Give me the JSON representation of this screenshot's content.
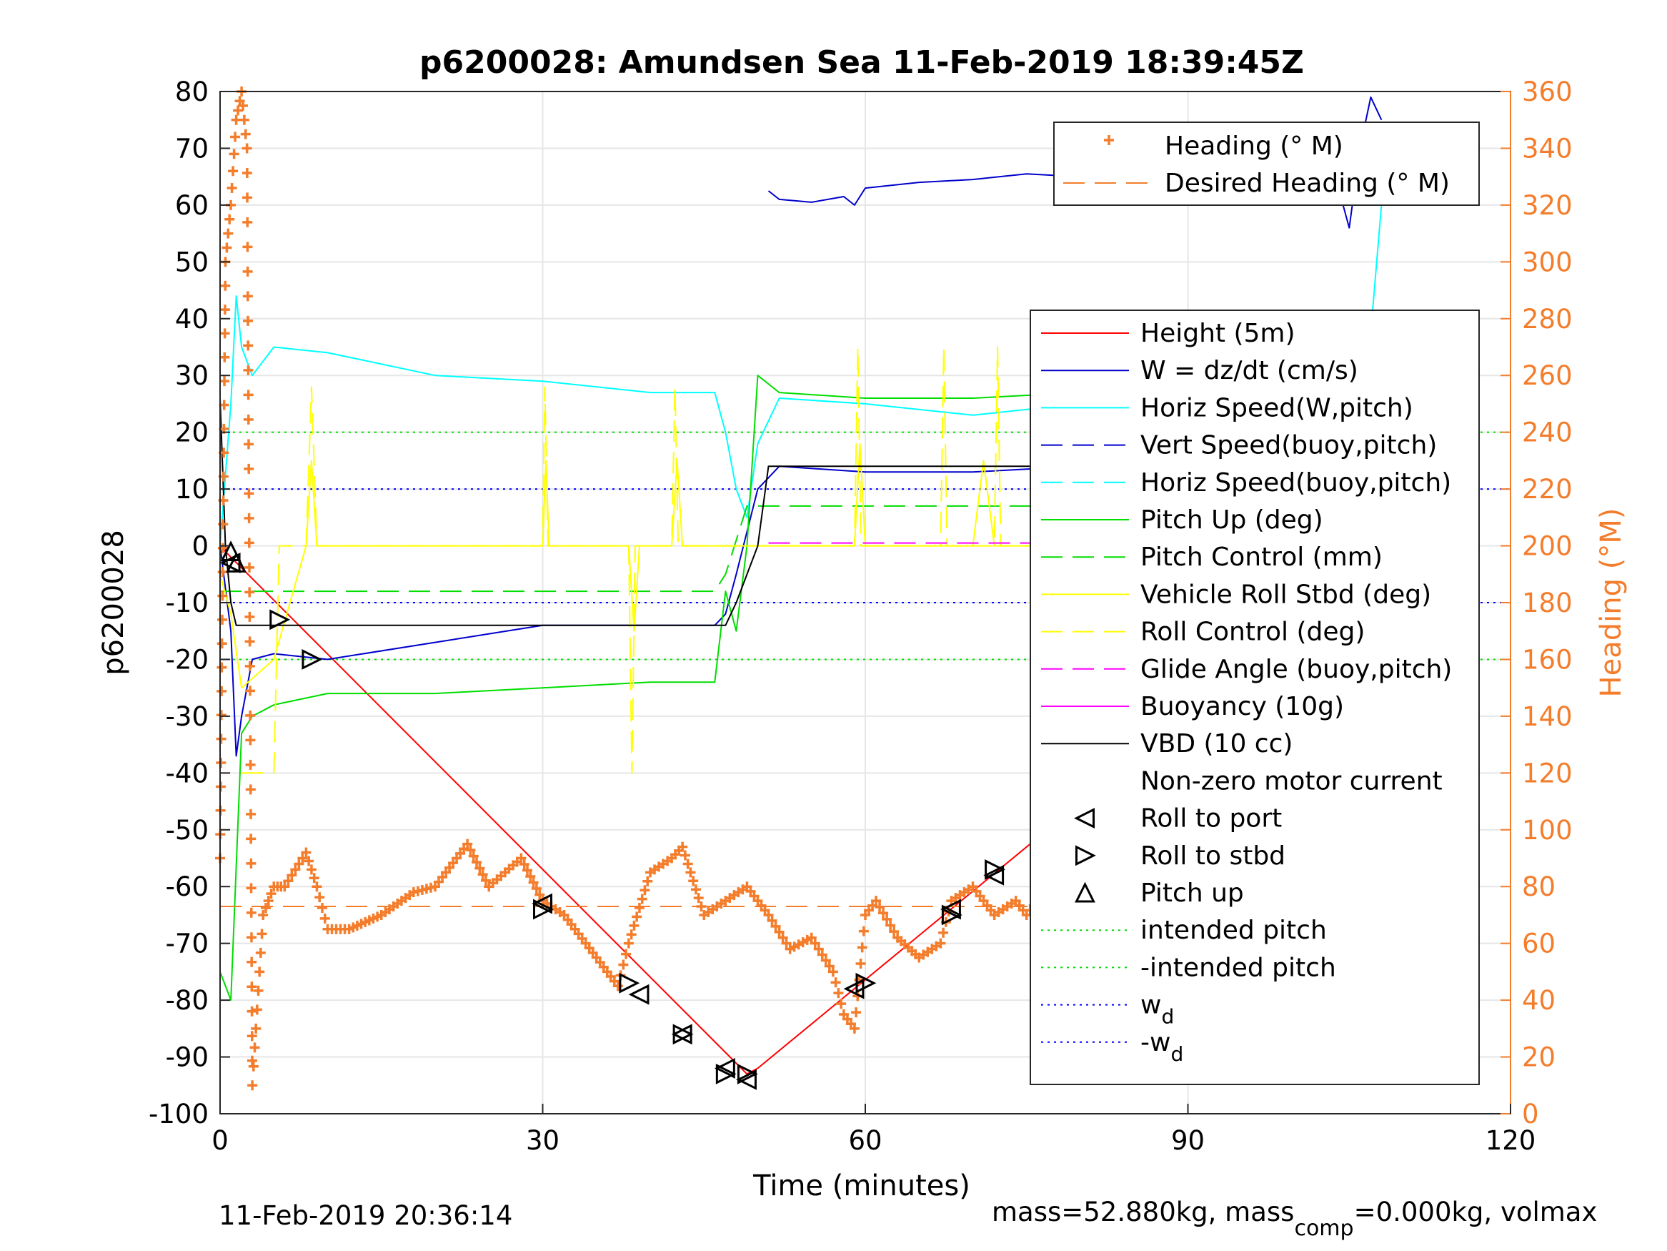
{
  "chart_data": {
    "type": "line",
    "title": "p6200028: Amundsen Sea 11-Feb-2019 18:39:45Z",
    "xlabel": "Time (minutes)",
    "ylabel": "p6200028",
    "y2label": "Heading (°M)",
    "xlim": [
      0,
      120
    ],
    "ylim": [
      -100,
      80
    ],
    "y2lim": [
      0,
      360
    ],
    "xticks": [
      "0",
      "30",
      "60",
      "90",
      "120"
    ],
    "yticks": [
      "80",
      "70",
      "60",
      "50",
      "40",
      "30",
      "20",
      "10",
      "0",
      "-10",
      "-20",
      "-30",
      "-40",
      "-50",
      "-60",
      "-70",
      "-80",
      "-90",
      "-100"
    ],
    "y2ticks": [
      "360",
      "340",
      "320",
      "300",
      "280",
      "260",
      "240",
      "220",
      "200",
      "180",
      "160",
      "140",
      "120",
      "100",
      "80",
      "60",
      "40",
      "20",
      "0"
    ],
    "grid": true,
    "colors": {
      "height": "#ff0000",
      "w": "#0000cc",
      "horiz": "#00ffff",
      "vert": "#0000cc",
      "pitch": "#00dd00",
      "roll": "#ffff00",
      "glide": "#ff00ff",
      "vbd": "#000000",
      "heading": "#f47d2c",
      "intended": "#00dd00",
      "wd": "#0000ff"
    },
    "legend_heading": {
      "placement": "top-right",
      "entries": [
        "Heading (° M)",
        "Desired Heading (° M)"
      ]
    },
    "legend_main": {
      "placement": "right",
      "entries": [
        "Height (5m)",
        "W = dz/dt (cm/s)",
        "Horiz Speed(W,pitch)",
        "Vert Speed(buoy,pitch)",
        "Horiz Speed(buoy,pitch)",
        "Pitch Up (deg)",
        "Pitch Control (mm)",
        "Vehicle Roll Stbd (deg)",
        "Roll Control (deg)",
        "Glide Angle (buoy,pitch)",
        "Buoyancy (10g)",
        "VBD (10 cc)",
        "Non-zero motor current",
        "Roll to port",
        "Roll to stbd",
        "Pitch up",
        "intended pitch",
        "-intended pitch",
        "w",
        "-w"
      ],
      "subscripts": {
        "18": "d",
        "19": "d"
      }
    },
    "series": [
      {
        "name": "Height (5m)",
        "x": [
          0,
          1,
          49,
          50,
          109
        ],
        "y": [
          0,
          -2,
          -93,
          -92,
          0
        ]
      },
      {
        "name": "W = dz/dt (cm/s)",
        "x": [
          0,
          1,
          1.5,
          2,
          3,
          5,
          10,
          20,
          30,
          40,
          46,
          47,
          48,
          50,
          52,
          60,
          70,
          80,
          90,
          100,
          106,
          108
        ],
        "y": [
          0,
          -15,
          -37,
          -30,
          -20,
          -19,
          -20,
          -17,
          -14,
          -14,
          -14,
          -12,
          -5,
          10,
          14,
          13,
          13,
          14,
          13,
          12,
          10,
          12
        ]
      },
      {
        "name": "Horiz Speed(W,pitch)",
        "x": [
          0,
          1,
          1.5,
          2,
          3,
          5,
          10,
          20,
          30,
          40,
          46,
          47,
          48,
          49,
          50,
          52,
          60,
          70,
          80,
          90,
          100,
          106,
          108
        ],
        "y": [
          0,
          25,
          44,
          35,
          30,
          35,
          34,
          30,
          29,
          27,
          27,
          20,
          10,
          5,
          18,
          26,
          25,
          23,
          25,
          24,
          23,
          15,
          60
        ]
      },
      {
        "name": "Pitch Up (deg)",
        "x": [
          0,
          1,
          2,
          3,
          5,
          10,
          20,
          30,
          40,
          46,
          47,
          48,
          49,
          50,
          52,
          60,
          70,
          80,
          90,
          100,
          106,
          108
        ],
        "y": [
          -75,
          -80,
          -33,
          -30,
          -28,
          -26,
          -26,
          -25,
          -24,
          -24,
          -8,
          -15,
          0,
          30,
          27,
          26,
          26,
          27,
          26,
          27,
          30,
          -20
        ]
      },
      {
        "name": "Pitch Control (mm)",
        "x": [
          0,
          5,
          46,
          47,
          49,
          108
        ],
        "y": [
          -8,
          -8,
          -8,
          -5,
          7,
          7
        ]
      },
      {
        "name": "Vehicle Roll Stbd (deg)",
        "x": [
          0,
          1,
          2,
          5,
          8,
          8.5,
          9,
          10,
          30,
          30.3,
          30.6,
          31,
          38,
          38.5,
          39,
          42,
          42.5,
          43,
          46,
          50,
          59,
          59.5,
          60,
          70,
          71,
          72,
          80,
          81,
          82,
          90,
          92,
          93,
          100,
          104,
          106,
          108
        ],
        "y": [
          -5,
          -12,
          -25,
          -20,
          0,
          15,
          0,
          0,
          0,
          15,
          0,
          0,
          0,
          -15,
          0,
          0,
          15,
          0,
          0,
          0,
          0,
          18,
          0,
          0,
          15,
          0,
          0,
          15,
          0,
          0,
          15,
          0,
          0,
          5,
          -10,
          -5
        ]
      },
      {
        "name": "Roll Control (deg)",
        "x": [
          2,
          3,
          5,
          5.5,
          8,
          8.5,
          9,
          30,
          30.2,
          30.5,
          38,
          38.3,
          38.6,
          39,
          42,
          42.3,
          42.6,
          59,
          59.3,
          59.6,
          67,
          67.3,
          67.6,
          72,
          72.3,
          72.6,
          104,
          105,
          106
        ],
        "y": [
          -40,
          -40,
          -40,
          0,
          0,
          28,
          0,
          0,
          28,
          0,
          0,
          -40,
          0,
          0,
          0,
          28,
          0,
          0,
          35,
          0,
          0,
          35,
          0,
          0,
          35,
          0,
          0,
          -35,
          0
        ]
      },
      {
        "name": "Glide Angle (buoy,pitch)",
        "x": [
          51,
          109
        ],
        "y": [
          0.5,
          0.5
        ]
      },
      {
        "name": "VBD (10 cc)",
        "x": [
          0,
          0.5,
          1,
          1.5,
          46,
          47,
          48,
          50,
          51,
          108
        ],
        "y": [
          26,
          0,
          -10,
          -14,
          -14,
          -14,
          -10,
          0,
          14,
          14
        ]
      },
      {
        "name": "Vert Speed(buoy,pitch)",
        "x": [
          51,
          52,
          55,
          58,
          59,
          60,
          65,
          70,
          75,
          80,
          85,
          90,
          95,
          100,
          104,
          105,
          106,
          107,
          108
        ],
        "y_right": [
          325,
          322,
          321,
          323,
          320,
          326,
          328,
          329,
          331,
          330,
          326,
          327,
          330,
          328,
          326,
          312,
          340,
          358,
          350
        ]
      },
      {
        "name": "Heading (° M)",
        "x": [
          0,
          0.5,
          1,
          1.5,
          2,
          2.5,
          3,
          4,
          5,
          6,
          8,
          9,
          10,
          12,
          15,
          18,
          20,
          23,
          25,
          28,
          30,
          32,
          35,
          37,
          38,
          40,
          42,
          43,
          45,
          47,
          49,
          51,
          53,
          55,
          57,
          58,
          59,
          60,
          61,
          63,
          65,
          67,
          68,
          70,
          72,
          74,
          75,
          77,
          78,
          80,
          81,
          82,
          85,
          88,
          90,
          92,
          95,
          97,
          100,
          103,
          104,
          105,
          106,
          107,
          108
        ],
        "y_right": [
          90,
          300,
          320,
          350,
          360,
          340,
          10,
          70,
          80,
          80,
          92,
          80,
          65,
          65,
          70,
          78,
          80,
          95,
          80,
          90,
          75,
          70,
          55,
          45,
          60,
          85,
          90,
          94,
          70,
          75,
          80,
          70,
          58,
          62,
          50,
          35,
          30,
          70,
          75,
          62,
          55,
          60,
          75,
          80,
          70,
          75,
          70,
          80,
          60,
          40,
          40,
          75,
          60,
          55,
          72,
          78,
          75,
          72,
          70,
          75,
          115,
          100,
          90,
          80,
          90
        ]
      },
      {
        "name": "Desired Heading (° M)",
        "x": [
          0,
          108
        ],
        "y_right": [
          73,
          73
        ]
      }
    ],
    "hlines": [
      {
        "name": "intended pitch",
        "y": 20
      },
      {
        "name": "-intended pitch",
        "y": -20
      },
      {
        "name": "w_d",
        "y": 10
      },
      {
        "name": "-w_d",
        "y": -10
      }
    ],
    "markers": {
      "roll_to_port": {
        "x": [
          1,
          30,
          39,
          43,
          47,
          49,
          59,
          68,
          72,
          81,
          86,
          88,
          96,
          100,
          104,
          107,
          108
        ],
        "y": [
          -3,
          -63,
          -79,
          -86,
          -92,
          -94,
          -78,
          -64,
          -58,
          -43,
          -35,
          -29,
          -18,
          -12,
          -5,
          -1,
          0
        ]
      },
      "roll_to_stbd": {
        "x": [
          5.5,
          8.5,
          30,
          38,
          43,
          47,
          49,
          60,
          68,
          72,
          80,
          85,
          88,
          96,
          100,
          108
        ],
        "y": [
          -13,
          -20,
          -64,
          -77,
          -86,
          -93,
          -93,
          -77,
          -65,
          -57,
          -44,
          -36,
          -30,
          -19,
          -13,
          0
        ]
      },
      "pitch_up": {
        "x": [
          1,
          1.5,
          108.5
        ],
        "y": [
          -1,
          -3,
          0
        ]
      }
    }
  },
  "footer": {
    "timestamp": "11-Feb-2019 20:36:14",
    "mass_text": "mass=52.880kg, mass",
    "mass_sub": "comp",
    "mass_tail": "=0.000kg, volmax"
  }
}
